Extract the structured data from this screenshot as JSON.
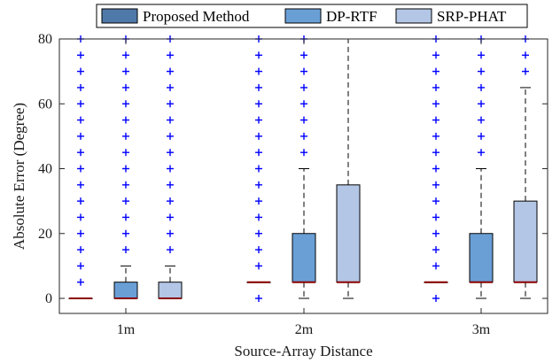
{
  "chart_data": {
    "type": "box",
    "title": "",
    "xlabel": "Source-Array Distance",
    "ylabel": "Absolute Error (Degree)",
    "ylim": [
      0,
      80
    ],
    "yticks": [
      0,
      20,
      40,
      60,
      80
    ],
    "grid": false,
    "legend_placement": "top",
    "categories": [
      "1m",
      "2m",
      "3m"
    ],
    "series": [
      {
        "name": "Proposed Method",
        "color": "#4f79a8",
        "boxes": [
          {
            "category": "1m",
            "min": 0,
            "q1": 0,
            "median": 0,
            "q3": 0,
            "max": 0,
            "outliers": [
              5,
              10,
              15,
              20,
              25,
              30,
              35,
              40,
              45,
              50,
              55,
              60,
              65,
              70,
              75,
              80
            ]
          },
          {
            "category": "2m",
            "min": 5,
            "q1": 5,
            "median": 5,
            "q3": 5,
            "max": 5,
            "outliers": [
              0,
              10,
              15,
              20,
              25,
              30,
              35,
              40,
              45,
              50,
              55,
              60,
              65,
              70,
              75,
              80
            ]
          },
          {
            "category": "3m",
            "min": 5,
            "q1": 5,
            "median": 5,
            "q3": 5,
            "max": 5,
            "outliers": [
              0,
              10,
              15,
              20,
              25,
              30,
              35,
              40,
              45,
              50,
              55,
              60,
              65,
              70,
              75,
              80
            ]
          }
        ]
      },
      {
        "name": "DP-RTF",
        "color": "#6a9fd6",
        "boxes": [
          {
            "category": "1m",
            "min": 0,
            "q1": 0,
            "median": 0,
            "q3": 5,
            "max": 10,
            "outliers": [
              15,
              20,
              25,
              30,
              35,
              40,
              45,
              50,
              55,
              60,
              65,
              70,
              75,
              80
            ]
          },
          {
            "category": "2m",
            "min": 0,
            "q1": 5,
            "median": 5,
            "q3": 20,
            "max": 40,
            "outliers": [
              45,
              50,
              55,
              60,
              65,
              70,
              75,
              80
            ]
          },
          {
            "category": "3m",
            "min": 0,
            "q1": 5,
            "median": 5,
            "q3": 20,
            "max": 40,
            "outliers": [
              45,
              50,
              55,
              60,
              65,
              70,
              75,
              80
            ]
          }
        ]
      },
      {
        "name": "SRP-PHAT",
        "color": "#b3c6e6",
        "boxes": [
          {
            "category": "1m",
            "min": 0,
            "q1": 0,
            "median": 0,
            "q3": 5,
            "max": 10,
            "outliers": [
              15,
              20,
              25,
              30,
              35,
              40,
              45,
              50,
              55,
              60,
              65,
              70,
              75,
              80
            ]
          },
          {
            "category": "2m",
            "min": 0,
            "q1": 5,
            "median": 5,
            "q3": 35,
            "max": 80,
            "outliers": []
          },
          {
            "category": "3m",
            "min": 0,
            "q1": 5,
            "median": 5,
            "q3": 30,
            "max": 65,
            "outliers": [
              70,
              75,
              80
            ]
          }
        ]
      }
    ],
    "colors": {
      "median_line": "#8b0000",
      "outlier": "#0000ff",
      "axis": "#262626"
    }
  }
}
